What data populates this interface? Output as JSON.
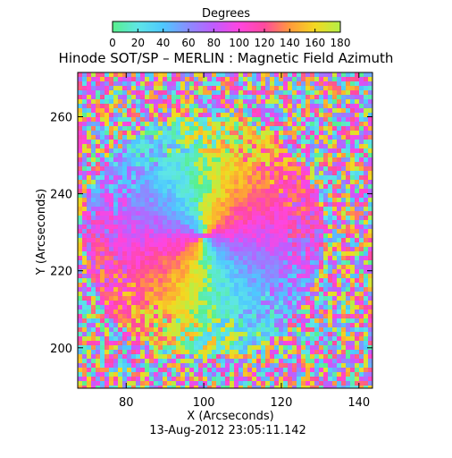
{
  "chart_data": {
    "type": "heatmap",
    "title": "Hinode SOT/SP – MERLIN : Magnetic Field Azimuth",
    "xlabel": "X (Arcseconds)",
    "ylabel": "Y (Arcseconds)",
    "xlim": [
      67.5,
      143.5
    ],
    "ylim": [
      189.5,
      271.5
    ],
    "xticks": [
      80,
      100,
      120,
      140
    ],
    "yticks": [
      200,
      220,
      240,
      260
    ],
    "colorbar": {
      "label": "Degrees",
      "range": [
        0,
        180
      ],
      "ticks": [
        0,
        20,
        40,
        60,
        80,
        100,
        120,
        140,
        160,
        180
      ],
      "colors": [
        "#58f08c",
        "#5ee6e6",
        "#4ec8ff",
        "#8a8cff",
        "#c05cff",
        "#ff45e0",
        "#ff4a9e",
        "#ff9a3c",
        "#f4d820",
        "#b4f048"
      ]
    },
    "feature": {
      "description_values": {
        "center_x": 100,
        "center_y": 229
      }
    },
    "date": "13-Aug-2012 23:05:11.142"
  }
}
